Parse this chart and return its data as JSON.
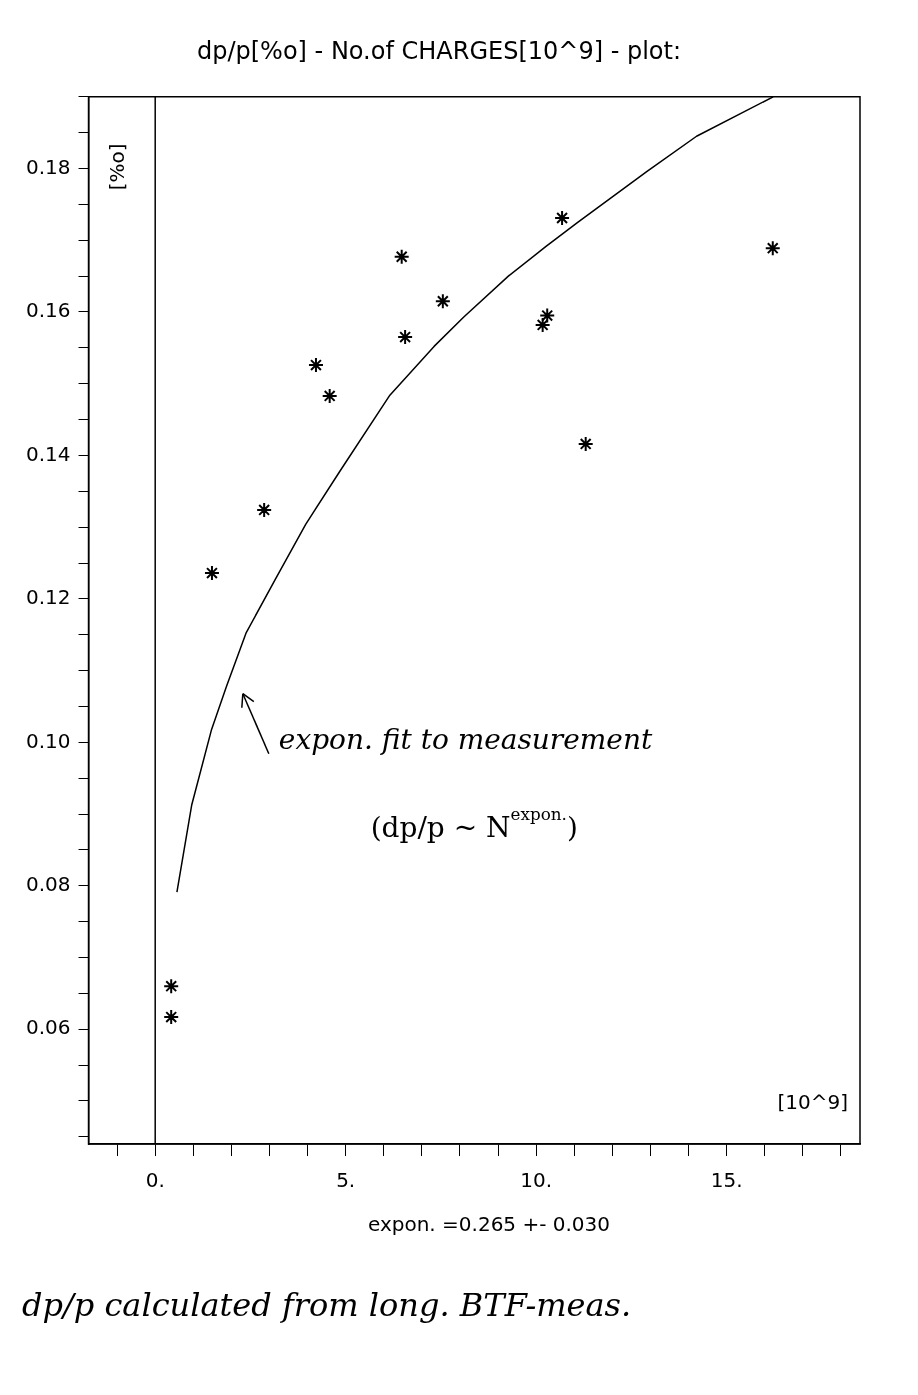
{
  "chart_data": {
    "type": "scatter",
    "title": "dp/p[%o] - No.of CHARGES[10^9] - plot:",
    "xlabel": "[10^9]",
    "ylabel": "[%o]",
    "xlim": [
      -1.75,
      18.5
    ],
    "ylim": [
      0.044,
      0.19
    ],
    "xticks": [
      {
        "value": -1,
        "label": null
      },
      {
        "value": 0,
        "label": "0."
      },
      {
        "value": 1,
        "label": null
      },
      {
        "value": 2,
        "label": null
      },
      {
        "value": 3,
        "label": null
      },
      {
        "value": 4,
        "label": null
      },
      {
        "value": 5,
        "label": "5."
      },
      {
        "value": 6,
        "label": null
      },
      {
        "value": 7,
        "label": null
      },
      {
        "value": 8,
        "label": null
      },
      {
        "value": 9,
        "label": null
      },
      {
        "value": 10,
        "label": "10."
      },
      {
        "value": 11,
        "label": null
      },
      {
        "value": 12,
        "label": null
      },
      {
        "value": 13,
        "label": null
      },
      {
        "value": 14,
        "label": null
      },
      {
        "value": 15,
        "label": "15."
      },
      {
        "value": 16,
        "label": null
      },
      {
        "value": 17,
        "label": null
      },
      {
        "value": 18,
        "label": null
      }
    ],
    "yticks": [
      {
        "value": 0.045,
        "label": null
      },
      {
        "value": 0.05,
        "label": null
      },
      {
        "value": 0.055,
        "label": null
      },
      0.06,
      {
        "value": 0.065,
        "label": null
      },
      {
        "value": 0.07,
        "label": null
      },
      {
        "value": 0.075,
        "label": null
      },
      0.08,
      {
        "value": 0.085,
        "label": null
      },
      {
        "value": 0.09,
        "label": null
      },
      {
        "value": 0.095,
        "label": null
      },
      {
        "value": 0.1,
        "label": "0.10"
      },
      {
        "value": 0.105,
        "label": null
      },
      {
        "value": 0.11,
        "label": null
      },
      {
        "value": 0.115,
        "label": null
      },
      0.12,
      {
        "value": 0.125,
        "label": null
      },
      {
        "value": 0.13,
        "label": null
      },
      {
        "value": 0.135,
        "label": null
      },
      0.14,
      {
        "value": 0.145,
        "label": null
      },
      {
        "value": 0.15,
        "label": null
      },
      {
        "value": 0.155,
        "label": null
      },
      0.16,
      {
        "value": 0.165,
        "label": null
      },
      {
        "value": 0.17,
        "label": null
      },
      {
        "value": 0.175,
        "label": null
      },
      0.18,
      {
        "value": 0.185,
        "label": null
      },
      {
        "value": 0.19,
        "label": null
      }
    ],
    "grid": false,
    "legend": false,
    "series": [
      {
        "type": "scatter",
        "marker": "cross",
        "color": "#000000",
        "x": [
          0.42,
          0.42,
          1.49,
          2.86,
          4.22,
          4.58,
          6.47,
          6.56,
          7.55,
          10.17,
          10.29,
          10.68,
          11.3,
          16.21
        ],
        "values": [
          0.066,
          0.0617,
          0.1236,
          0.1324,
          0.1526,
          0.1483,
          0.1677,
          0.1565,
          0.1615,
          0.1582,
          0.1595,
          0.1731,
          0.1416,
          0.1689
        ]
      },
      {
        "type": "line",
        "marker": "none",
        "line_style": "solid",
        "color": "#000000",
        "x": [
          0.57,
          0.96,
          1.48,
          1.87,
          2.39,
          3.17,
          3.95,
          4.86,
          6.16,
          7.32,
          8.1,
          9.27,
          10.25,
          11.09,
          12.91,
          14.21,
          16.22
        ],
        "values": [
          0.0791,
          0.0913,
          0.1018,
          0.1078,
          0.1153,
          0.1229,
          0.1304,
          0.1379,
          0.1484,
          0.1552,
          0.1593,
          0.165,
          0.1691,
          0.1725,
          0.1796,
          0.1845,
          0.19
        ]
      }
    ],
    "ref_lines": [
      {
        "axis": "x",
        "value": 0,
        "color": "#000000"
      }
    ],
    "annotations": [
      "expon. fit to measurement",
      "(dp/p ~ N$^{expon.}$)",
      "expon. =0.265 +- 0.030",
      "dp/p calculated from long. BTF-meas."
    ]
  }
}
